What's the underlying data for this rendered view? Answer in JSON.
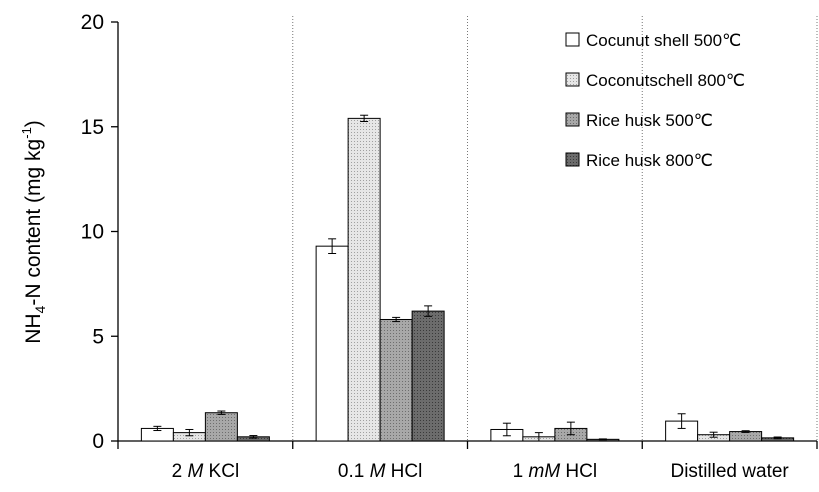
{
  "chart_data": {
    "type": "bar",
    "ylabel_parts": {
      "pre": "NH",
      "sub": "4",
      "mid": "-N content (mg kg",
      "sup": "-1",
      "post": ")"
    },
    "ylim": [
      0,
      20
    ],
    "yticks": [
      0,
      5,
      10,
      15,
      20
    ],
    "grid": false,
    "legend_position": "top-right",
    "categories": [
      {
        "num": "2 ",
        "unit": "M",
        "rest": " KCl"
      },
      {
        "num": "0.1 ",
        "unit": "M",
        "rest": " HCl"
      },
      {
        "num": "1 ",
        "unit": "mM",
        "rest": " HCl"
      },
      {
        "num": "",
        "unit": "",
        "rest": "Distilled water"
      }
    ],
    "series": [
      {
        "name": "Cocunut shell 500℃",
        "color": "#ffffff",
        "pattern": "none",
        "values": [
          0.6,
          9.3,
          0.55,
          0.95
        ],
        "errors": [
          0.1,
          0.35,
          0.3,
          0.35
        ]
      },
      {
        "name": "Coconutschell 800℃",
        "color": "#d4d4d4",
        "pattern": "dots",
        "values": [
          0.4,
          15.4,
          0.2,
          0.3
        ],
        "errors": [
          0.15,
          0.15,
          0.2,
          0.12
        ]
      },
      {
        "name": "Rice husk 500℃",
        "color": "#9a9a9a",
        "pattern": "dots",
        "values": [
          1.35,
          5.8,
          0.6,
          0.45
        ],
        "errors": [
          0.08,
          0.1,
          0.3,
          0.04
        ]
      },
      {
        "name": "Rice husk 800℃",
        "color": "#5e5e5e",
        "pattern": "dots",
        "values": [
          0.2,
          6.2,
          0.08,
          0.15
        ],
        "errors": [
          0.06,
          0.25,
          0.02,
          0.04
        ]
      }
    ]
  }
}
